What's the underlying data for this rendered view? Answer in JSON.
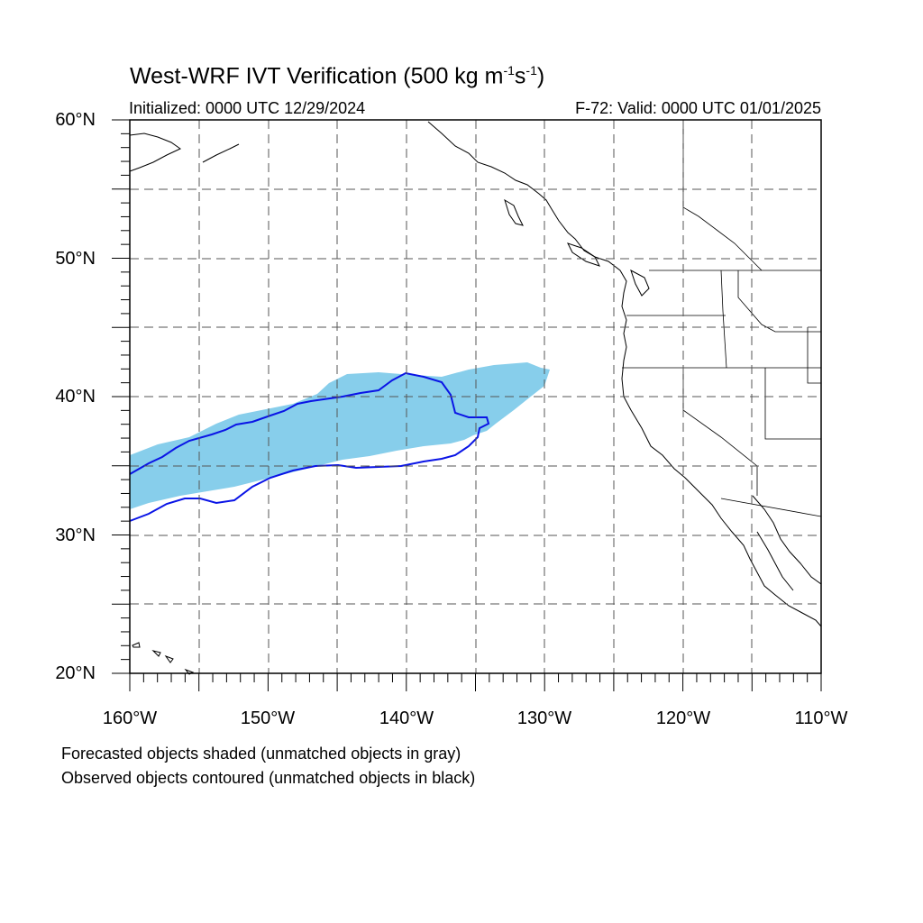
{
  "header": {
    "title_main": "West-WRF IVT Verification (500 kg m",
    "title_exp1": "-1",
    "title_mid": "s",
    "title_exp2": "-1",
    "title_end": ")",
    "initialized": "Initialized: 0000 UTC 12/29/2024",
    "valid": "F-72: Valid: 0000 UTC 01/01/2025"
  },
  "axes": {
    "lat_labels": [
      "60°N",
      "50°N",
      "40°N",
      "30°N",
      "20°N"
    ],
    "lon_labels": [
      "160°W",
      "150°W",
      "140°W",
      "130°W",
      "120°W",
      "110°W"
    ],
    "lat_range": [
      20,
      60
    ],
    "lon_range": [
      -160,
      -110
    ]
  },
  "footer": {
    "note1": "Forecasted objects shaded (unmatched objects in gray)",
    "note2": "Observed objects contoured (unmatched objects in black)"
  },
  "colors": {
    "forecast_fill": "#87ceeb",
    "observed_contour": "#0a14e6",
    "coast": "#000000",
    "grid": "#555555"
  }
}
